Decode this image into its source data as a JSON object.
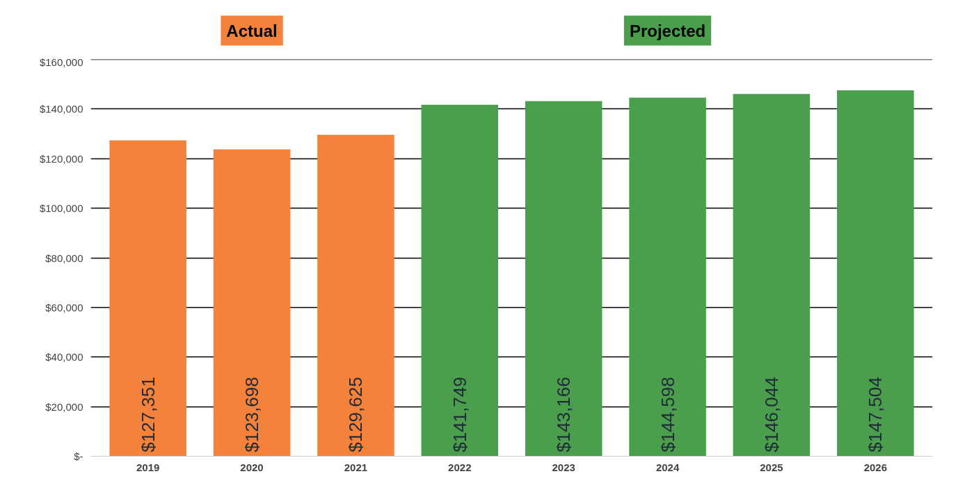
{
  "chart_data": {
    "type": "bar",
    "categories": [
      "2019",
      "2020",
      "2021",
      "2022",
      "2023",
      "2024",
      "2025",
      "2026"
    ],
    "series": [
      {
        "name": "Actual",
        "color": "#f5823a",
        "values": [
          127351,
          123698,
          129625,
          null,
          null,
          null,
          null,
          null
        ],
        "value_labels": [
          "$127,351",
          "$123,698",
          "$129,625",
          null,
          null,
          null,
          null,
          null
        ]
      },
      {
        "name": "Projected",
        "color": "#4a9e4c",
        "values": [
          null,
          null,
          null,
          141749,
          143166,
          144598,
          146044,
          147504
        ],
        "value_labels": [
          null,
          null,
          null,
          "$141,749",
          "$143,166",
          "$144,598",
          "$146,044",
          "$147,504"
        ]
      }
    ],
    "ylim": [
      0,
      160000
    ],
    "yticks": [
      {
        "value": 0,
        "label": "$-"
      },
      {
        "value": 20000,
        "label": "$20,000"
      },
      {
        "value": 40000,
        "label": "$40,000"
      },
      {
        "value": 60000,
        "label": "$60,000"
      },
      {
        "value": 80000,
        "label": "$80,000"
      },
      {
        "value": 100000,
        "label": "$100,000"
      },
      {
        "value": 120000,
        "label": "$120,000"
      },
      {
        "value": 140000,
        "label": "$140,000"
      },
      {
        "value": 160000,
        "label": "$160,000"
      }
    ],
    "grid": "y",
    "legend": "top"
  }
}
